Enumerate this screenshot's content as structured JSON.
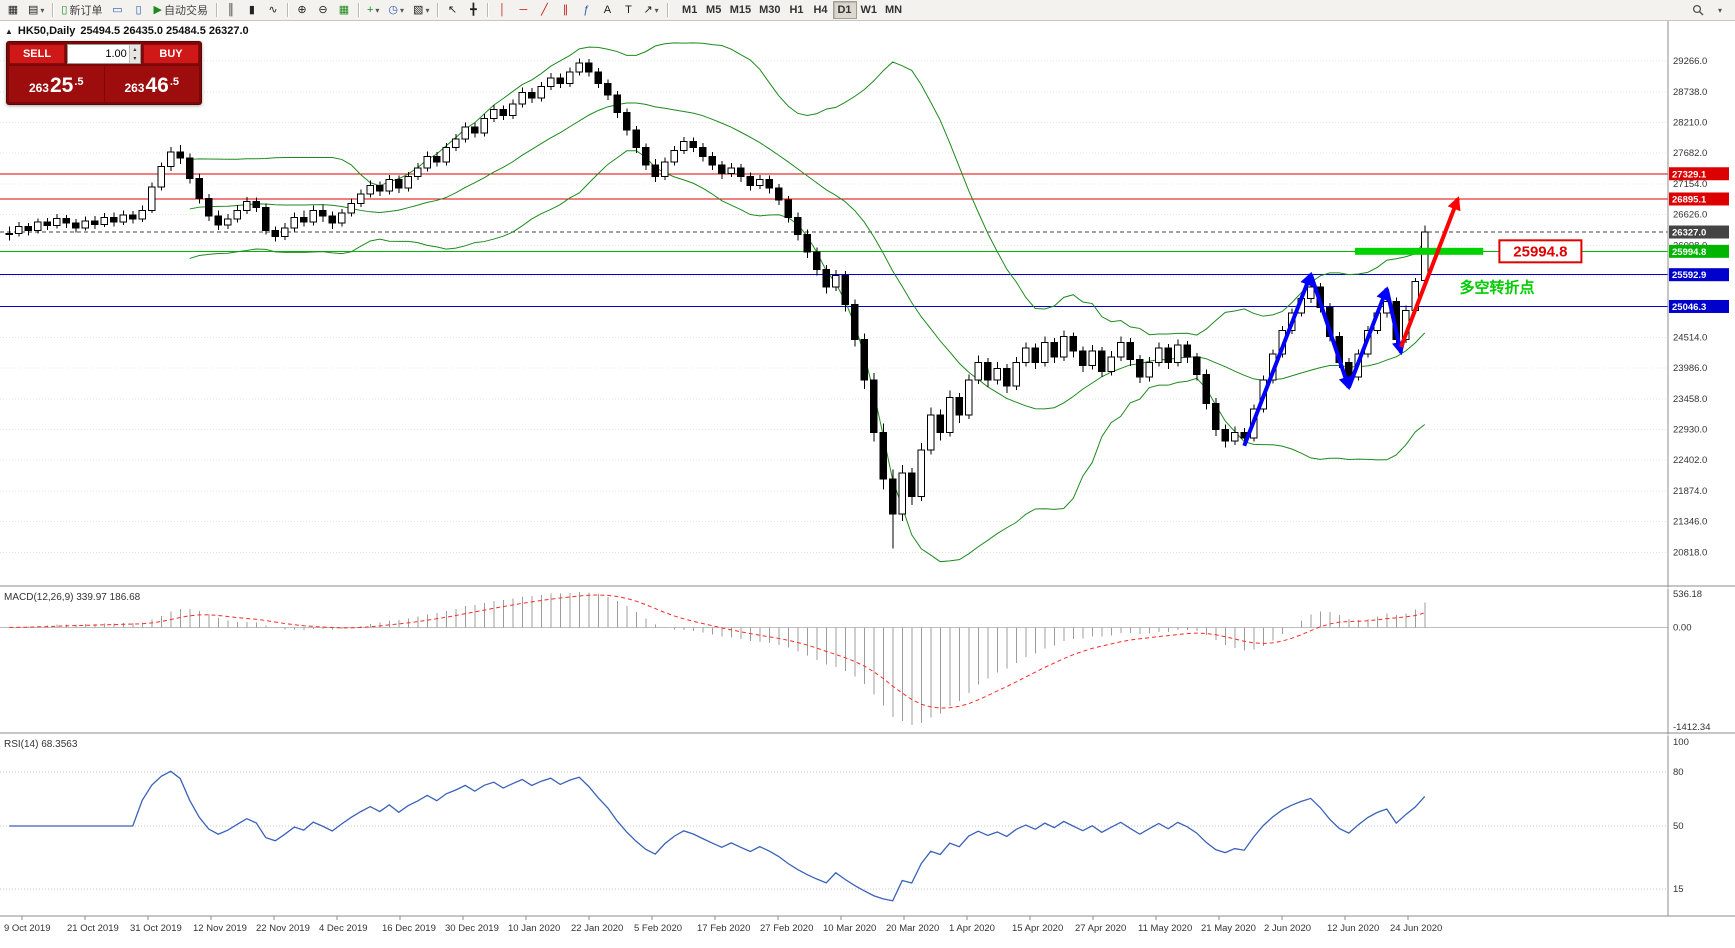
{
  "toolbar": {
    "new_order_label": "新订单",
    "autotrading_label": "自动交易",
    "timeframes": [
      "M1",
      "M5",
      "M15",
      "M30",
      "H1",
      "H4",
      "D1",
      "W1",
      "MN"
    ],
    "active_timeframe": "D1",
    "icons": {
      "new_chart": "▦",
      "profiles": "▤",
      "dropdown": "▾",
      "window": "▭",
      "window2": "▯",
      "autoplay": "▶",
      "bars": "║",
      "candles": "▮",
      "linechart": "∿",
      "zoom_in": "⊕",
      "zoom_out": "⊖",
      "tile": "▦",
      "indicator_add": "+",
      "periods": "◷",
      "template": "▧",
      "cursor": "↖",
      "crosshair": "╋",
      "vline": "│",
      "hline": "─",
      "trendline": "╱",
      "channel": "∥",
      "fibo": "ƒ",
      "text_tool": "A",
      "label_tool": "T",
      "arrow_tool": "↗",
      "collapse": "▲",
      "vol_up": "▴",
      "vol_down": "▾"
    }
  },
  "quick_trade": {
    "sell_label": "SELL",
    "buy_label": "BUY",
    "volume": "1.00",
    "sell_price_full": "26325.5",
    "buy_price_full": "26346.5",
    "sell_price": {
      "small": "263",
      "big": "25",
      "sup": ".5"
    },
    "buy_price": {
      "small": "263",
      "big": "46",
      "sup": ".5"
    }
  },
  "chart_header": {
    "title": "HK50,Daily",
    "ohlc": "25494.5 26435.0 25484.5 26327.0"
  },
  "chart_data": {
    "type": "candlestick",
    "symbol": "HK50",
    "timeframe": "Daily",
    "title": "HK50,Daily",
    "current_ohlc": {
      "open": 25494.5,
      "high": 26435.0,
      "low": 25484.5,
      "close": 26327.0
    },
    "price_axis": [
      "29266.0",
      "28738.0",
      "28210.0",
      "27682.0",
      "27154.0",
      "26626.0",
      "26098.0",
      "25570.0",
      "25042.0",
      "24514.0",
      "23986.0",
      "23458.0",
      "22930.0",
      "22402.0",
      "21874.0",
      "21346.0",
      "20818.0"
    ],
    "levels": [
      {
        "price": 27329.1,
        "label": "27329.1",
        "color": "#dd0000",
        "style": "solid"
      },
      {
        "price": 26895.1,
        "label": "26895.1",
        "color": "#dd0000",
        "style": "solid"
      },
      {
        "price": 26327.0,
        "label": "26327.0",
        "color": "#444444",
        "style": "dash"
      },
      {
        "price": 25994.8,
        "label": "25994.8",
        "color": "#00b400",
        "style": "solid"
      },
      {
        "price": 25592.9,
        "label": "25592.9",
        "color": "#0000cc",
        "style": "solid"
      },
      {
        "price": 25046.3,
        "label": "25046.3",
        "color": "#0000cc",
        "style": "solid"
      }
    ],
    "bollinger": {
      "period": 20,
      "deviation": 2,
      "color": "#1e8a1e"
    },
    "annotations": {
      "support_price_label": "25994.8",
      "turning_point_text": "多空转折点",
      "green_band": {
        "i1": 142,
        "i2": 155.5,
        "price": 25994.8
      },
      "zigzag": [
        [
          130,
          22650
        ],
        [
          137,
          25600
        ],
        [
          141,
          23650
        ],
        [
          145,
          25350
        ],
        [
          146.5,
          24250
        ]
      ],
      "red_arrow": [
        [
          146.5,
          24350
        ],
        [
          152.5,
          26900
        ]
      ],
      "zigzag_color": "#0000ff",
      "arrow_color": "#ff0000"
    },
    "macd": {
      "title": "MACD(12,26,9)",
      "values": "339.97 186.68",
      "axis": [
        "536.18",
        "0.00",
        "-1412.34"
      ],
      "fast": 12,
      "slow": 26,
      "signal": 9
    },
    "rsi": {
      "title": "RSI(14)",
      "value": "68.3563",
      "period": 14,
      "axis": [
        "100",
        "80",
        "50",
        "15"
      ],
      "levels": [
        80,
        50,
        15
      ]
    },
    "dates": [
      "9 Oct 2019",
      "21 Oct 2019",
      "31 Oct 2019",
      "12 Nov 2019",
      "22 Nov 2019",
      "4 Dec 2019",
      "16 Dec 2019",
      "30 Dec 2019",
      "10 Jan 2020",
      "22 Jan 2020",
      "5 Feb 2020",
      "17 Feb 2020",
      "27 Feb 2020",
      "10 Mar 2020",
      "20 Mar 2020",
      "1 Apr 2020",
      "15 Apr 2020",
      "27 Apr 2020",
      "11 May 2020",
      "21 May 2020",
      "2 Jun 2020",
      "12 Jun 2020",
      "24 Jun 2020"
    ],
    "candles": [
      [
        26280,
        26420,
        26180,
        26300
      ],
      [
        26300,
        26500,
        26250,
        26420
      ],
      [
        26420,
        26480,
        26270,
        26350
      ],
      [
        26350,
        26560,
        26300,
        26500
      ],
      [
        26500,
        26570,
        26360,
        26440
      ],
      [
        26440,
        26640,
        26390,
        26560
      ],
      [
        26560,
        26620,
        26400,
        26480
      ],
      [
        26480,
        26550,
        26320,
        26400
      ],
      [
        26400,
        26590,
        26350,
        26520
      ],
      [
        26520,
        26600,
        26380,
        26460
      ],
      [
        26460,
        26650,
        26410,
        26580
      ],
      [
        26580,
        26660,
        26420,
        26500
      ],
      [
        26500,
        26700,
        26450,
        26620
      ],
      [
        26620,
        26690,
        26470,
        26550
      ],
      [
        26550,
        26780,
        26500,
        26700
      ],
      [
        26700,
        27180,
        26650,
        27100
      ],
      [
        27100,
        27520,
        27040,
        27450
      ],
      [
        27450,
        27790,
        27380,
        27700
      ],
      [
        27700,
        27820,
        27500,
        27600
      ],
      [
        27600,
        27680,
        27160,
        27250
      ],
      [
        27250,
        27330,
        26820,
        26900
      ],
      [
        26900,
        26980,
        26520,
        26600
      ],
      [
        26600,
        26700,
        26360,
        26450
      ],
      [
        26450,
        26640,
        26380,
        26550
      ],
      [
        26550,
        26790,
        26490,
        26700
      ],
      [
        26700,
        26930,
        26640,
        26850
      ],
      [
        26850,
        26920,
        26670,
        26750
      ],
      [
        26750,
        26820,
        26280,
        26350
      ],
      [
        26350,
        26420,
        26160,
        26250
      ],
      [
        26250,
        26480,
        26190,
        26400
      ],
      [
        26400,
        26660,
        26340,
        26580
      ],
      [
        26580,
        26700,
        26420,
        26500
      ],
      [
        26500,
        26780,
        26440,
        26700
      ],
      [
        26700,
        26800,
        26500,
        26600
      ],
      [
        26600,
        26680,
        26380,
        26480
      ],
      [
        26480,
        26720,
        26420,
        26650
      ],
      [
        26650,
        26900,
        26590,
        26820
      ],
      [
        26820,
        27060,
        26760,
        26980
      ],
      [
        26980,
        27210,
        26920,
        27130
      ],
      [
        27130,
        27200,
        26950,
        27030
      ],
      [
        27030,
        27310,
        26970,
        27230
      ],
      [
        27230,
        27300,
        27000,
        27080
      ],
      [
        27080,
        27360,
        27020,
        27280
      ],
      [
        27280,
        27510,
        27220,
        27430
      ],
      [
        27430,
        27710,
        27370,
        27630
      ],
      [
        27630,
        27700,
        27450,
        27530
      ],
      [
        27530,
        27860,
        27470,
        27780
      ],
      [
        27780,
        28010,
        27720,
        27930
      ],
      [
        27930,
        28210,
        27870,
        28130
      ],
      [
        28130,
        28200,
        27950,
        28030
      ],
      [
        28030,
        28360,
        27970,
        28280
      ],
      [
        28280,
        28510,
        28220,
        28430
      ],
      [
        28430,
        28500,
        28250,
        28330
      ],
      [
        28330,
        28610,
        28270,
        28530
      ],
      [
        28530,
        28810,
        28470,
        28730
      ],
      [
        28730,
        28800,
        28550,
        28630
      ],
      [
        28630,
        28910,
        28570,
        28830
      ],
      [
        28830,
        29060,
        28770,
        28980
      ],
      [
        28980,
        29050,
        28800,
        28880
      ],
      [
        28880,
        29160,
        28820,
        29080
      ],
      [
        29080,
        29310,
        29020,
        29230
      ],
      [
        29230,
        29300,
        29000,
        29080
      ],
      [
        29080,
        29150,
        28800,
        28880
      ],
      [
        28880,
        28950,
        28600,
        28680
      ],
      [
        28680,
        28750,
        28290,
        28380
      ],
      [
        28380,
        28450,
        27990,
        28080
      ],
      [
        28080,
        28150,
        27690,
        27780
      ],
      [
        27780,
        27850,
        27390,
        27480
      ],
      [
        27480,
        27580,
        27190,
        27280
      ],
      [
        27280,
        27610,
        27220,
        27530
      ],
      [
        27530,
        27810,
        27470,
        27730
      ],
      [
        27730,
        27960,
        27670,
        27880
      ],
      [
        27880,
        27950,
        27700,
        27780
      ],
      [
        27780,
        27860,
        27540,
        27630
      ],
      [
        27630,
        27700,
        27390,
        27480
      ],
      [
        27480,
        27550,
        27240,
        27330
      ],
      [
        27330,
        27510,
        27270,
        27430
      ],
      [
        27430,
        27500,
        27190,
        27280
      ],
      [
        27280,
        27350,
        27040,
        27130
      ],
      [
        27130,
        27310,
        27070,
        27230
      ],
      [
        27230,
        27300,
        26990,
        27080
      ],
      [
        27080,
        27150,
        26790,
        26880
      ],
      [
        26880,
        26950,
        26490,
        26580
      ],
      [
        26580,
        26660,
        26180,
        26280
      ],
      [
        26280,
        26370,
        25880,
        25980
      ],
      [
        25980,
        26060,
        25580,
        25680
      ],
      [
        25680,
        25760,
        25270,
        25380
      ],
      [
        25380,
        25670,
        25310,
        25580
      ],
      [
        25580,
        25660,
        24960,
        25080
      ],
      [
        25080,
        25170,
        24360,
        24480
      ],
      [
        24480,
        24580,
        23630,
        23780
      ],
      [
        23780,
        23900,
        22720,
        22880
      ],
      [
        22880,
        23030,
        21900,
        22080
      ],
      [
        22080,
        22240,
        20880,
        21480
      ],
      [
        21480,
        22320,
        21360,
        22180
      ],
      [
        22180,
        22270,
        21630,
        21780
      ],
      [
        21780,
        22700,
        21700,
        22580
      ],
      [
        22580,
        23310,
        22500,
        23180
      ],
      [
        23180,
        23270,
        22740,
        22880
      ],
      [
        22880,
        23600,
        22810,
        23480
      ],
      [
        23480,
        23560,
        23040,
        23180
      ],
      [
        23180,
        23880,
        23110,
        23780
      ],
      [
        23780,
        24200,
        23710,
        24080
      ],
      [
        24080,
        24160,
        23660,
        23780
      ],
      [
        23780,
        24090,
        23700,
        23980
      ],
      [
        23980,
        24060,
        23560,
        23680
      ],
      [
        23680,
        24180,
        23610,
        24080
      ],
      [
        24080,
        24430,
        24010,
        24330
      ],
      [
        24330,
        24410,
        23970,
        24080
      ],
      [
        24080,
        24530,
        24010,
        24430
      ],
      [
        24430,
        24500,
        24070,
        24180
      ],
      [
        24180,
        24630,
        24110,
        24530
      ],
      [
        24530,
        24600,
        24170,
        24280
      ],
      [
        24280,
        24360,
        23920,
        24030
      ],
      [
        24030,
        24380,
        23960,
        24280
      ],
      [
        24280,
        24350,
        23830,
        23930
      ],
      [
        23930,
        24280,
        23860,
        24180
      ],
      [
        24180,
        24530,
        24110,
        24430
      ],
      [
        24430,
        24500,
        24020,
        24130
      ],
      [
        24130,
        24210,
        23730,
        23830
      ],
      [
        23830,
        24180,
        23760,
        24080
      ],
      [
        24080,
        24430,
        24010,
        24330
      ],
      [
        24330,
        24400,
        23970,
        24080
      ],
      [
        24080,
        24480,
        24010,
        24380
      ],
      [
        24380,
        24450,
        24070,
        24180
      ],
      [
        24180,
        24250,
        23770,
        23880
      ],
      [
        23880,
        23960,
        23270,
        23380
      ],
      [
        23380,
        23470,
        22820,
        22930
      ],
      [
        22930,
        23020,
        22620,
        22730
      ],
      [
        22730,
        22980,
        22660,
        22880
      ],
      [
        22880,
        22960,
        22670,
        22780
      ],
      [
        22780,
        23360,
        22720,
        23280
      ],
      [
        23280,
        23860,
        23220,
        23780
      ],
      [
        23780,
        24310,
        23720,
        24230
      ],
      [
        24230,
        24710,
        24170,
        24630
      ],
      [
        24630,
        25010,
        24570,
        24930
      ],
      [
        24930,
        25260,
        24870,
        25180
      ],
      [
        25180,
        25460,
        25110,
        25380
      ],
      [
        25380,
        25450,
        24940,
        25030
      ],
      [
        25030,
        25110,
        24440,
        24530
      ],
      [
        24530,
        24610,
        23990,
        24080
      ],
      [
        24080,
        24160,
        23740,
        23830
      ],
      [
        23830,
        24310,
        23770,
        24230
      ],
      [
        24230,
        24710,
        24170,
        24630
      ],
      [
        24630,
        25010,
        24570,
        24930
      ],
      [
        24930,
        25210,
        24860,
        25130
      ],
      [
        25130,
        25200,
        24380,
        24480
      ],
      [
        24480,
        25060,
        24420,
        24980
      ],
      [
        24980,
        25540,
        24920,
        25480
      ],
      [
        25494.5,
        26435.0,
        25484.5,
        26327.0
      ]
    ]
  }
}
